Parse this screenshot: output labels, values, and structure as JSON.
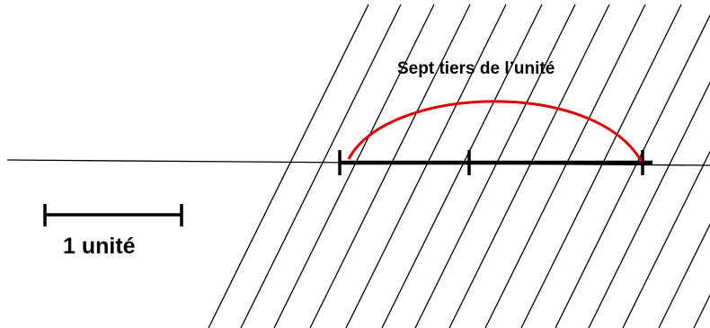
{
  "diagram": {
    "arc_label": "Sept tiers de l’unité",
    "unit_label": "1 unité",
    "colors": {
      "stroke": "#000000",
      "arc": "#e00000",
      "background": "#ffffff"
    }
  }
}
